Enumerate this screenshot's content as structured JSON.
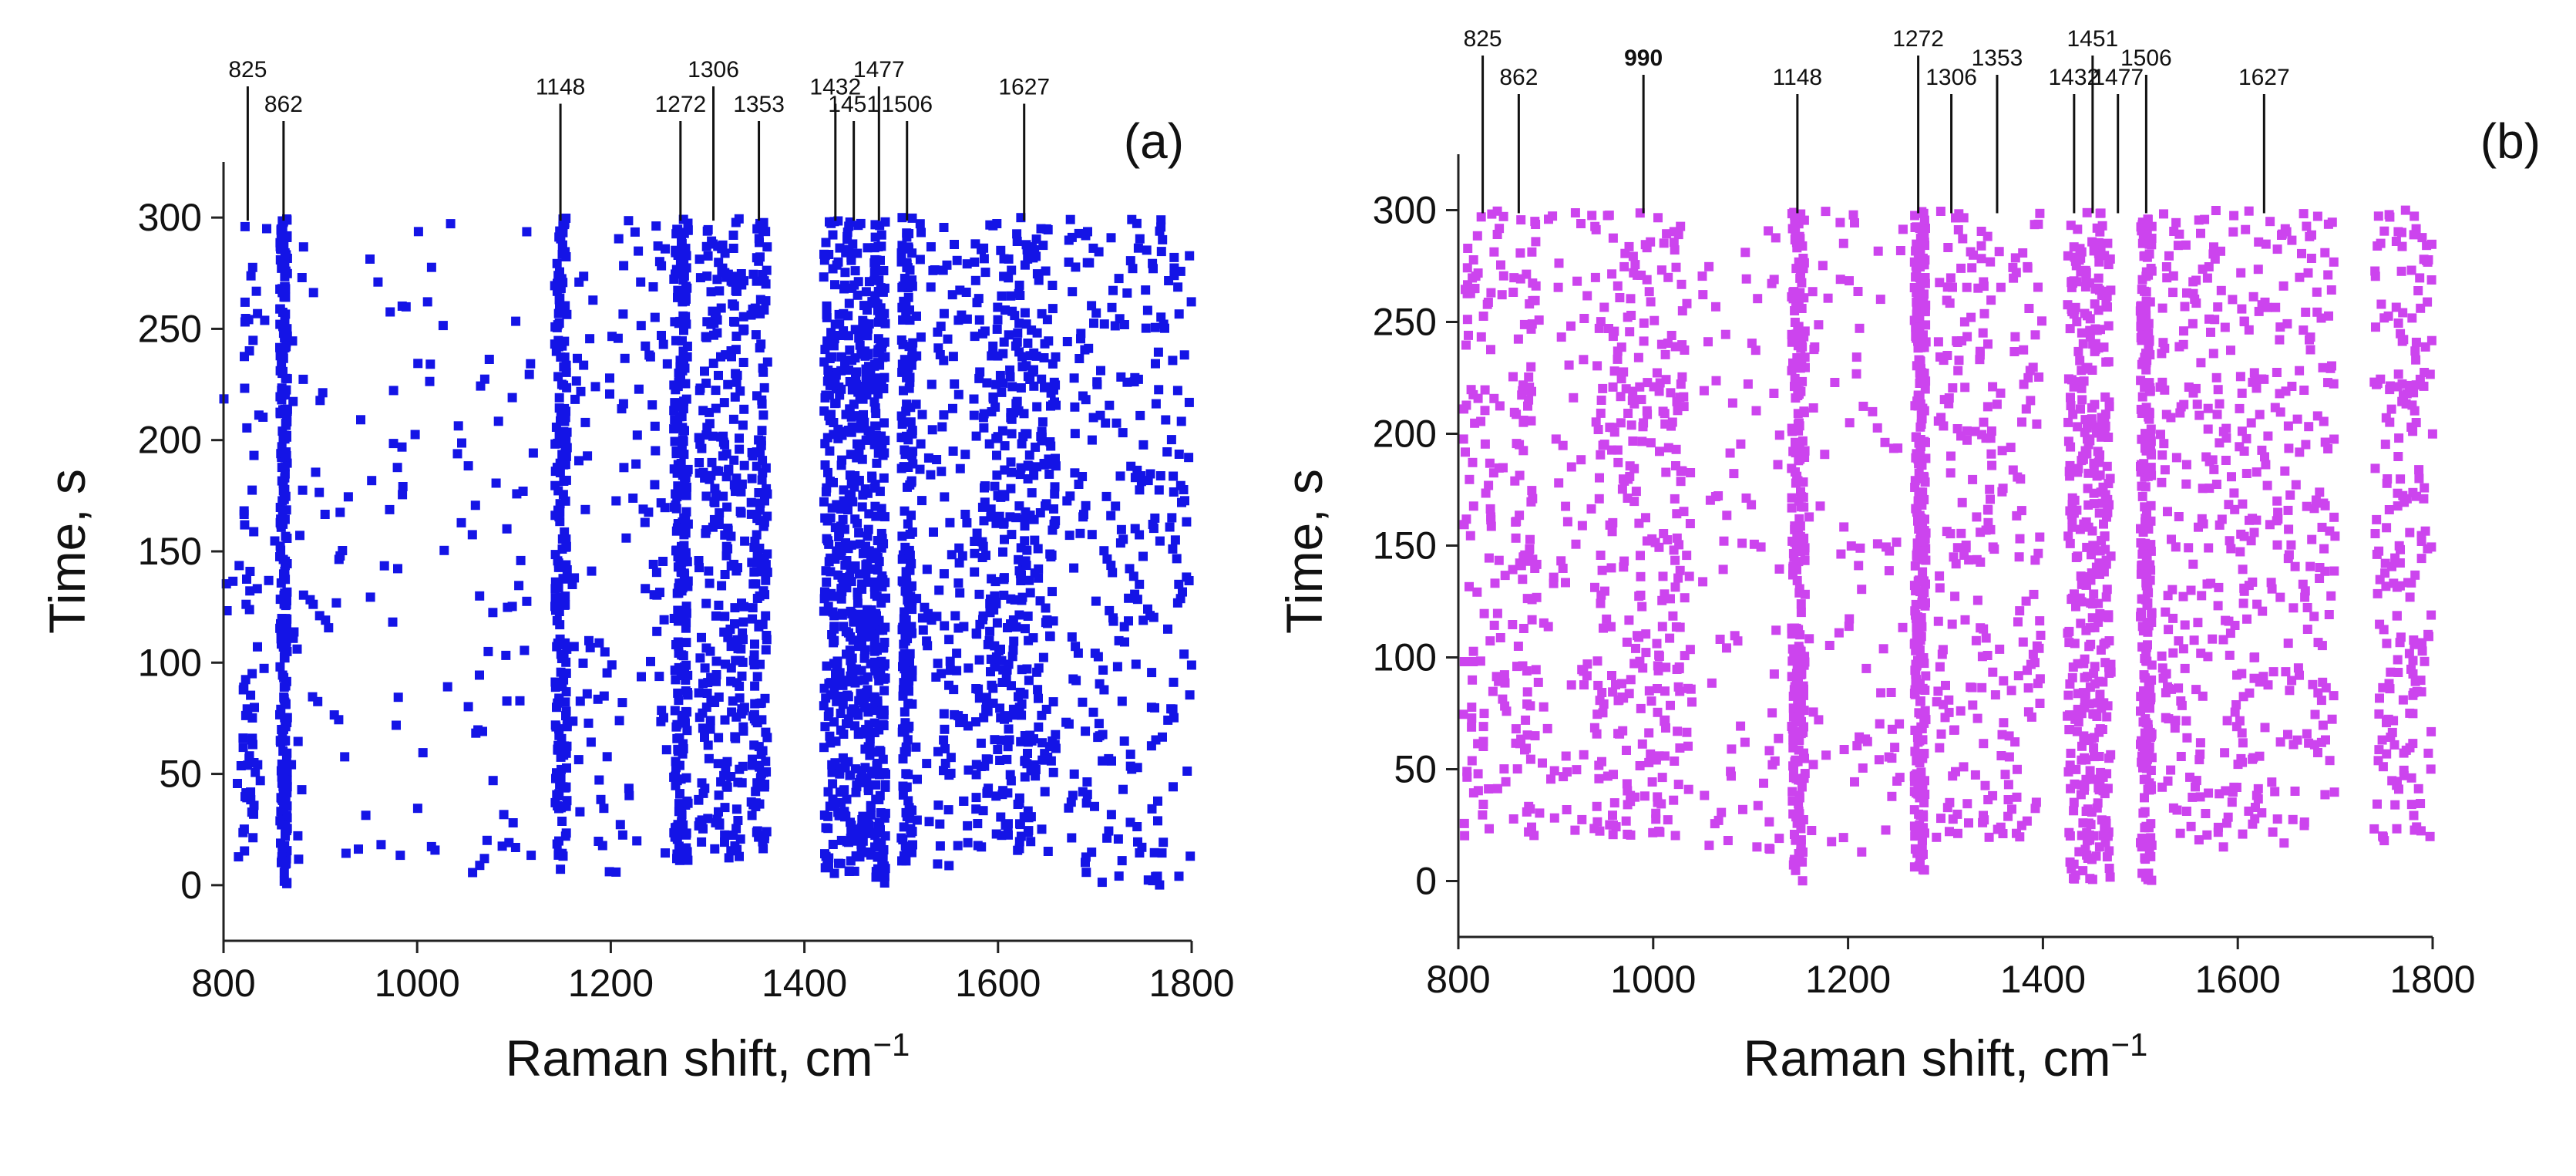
{
  "chart_data": [
    {
      "type": "scatter",
      "panel_label": "(a)",
      "xlabel": "Raman shift, cm",
      "xlabel_exponent": "−1",
      "ylabel": "Time, s",
      "xlim": [
        800,
        1800
      ],
      "ylim": [
        -25,
        325
      ],
      "xticks": [
        800,
        1000,
        1200,
        1400,
        1600,
        1800
      ],
      "yticks": [
        0,
        50,
        100,
        150,
        200,
        250,
        300
      ],
      "marker_color": "#1414e6",
      "peaks": [
        {
          "label": "825",
          "x": 825
        },
        {
          "label": "862",
          "x": 862
        },
        {
          "label": "1148",
          "x": 1148
        },
        {
          "label": "1272",
          "x": 1272
        },
        {
          "label": "1306",
          "x": 1306
        },
        {
          "label": "1353",
          "x": 1353
        },
        {
          "label": "1432",
          "x": 1432
        },
        {
          "label": "1451",
          "x": 1451
        },
        {
          "label": "1477",
          "x": 1477
        },
        {
          "label": "1506",
          "x": 1506
        },
        {
          "label": "1627",
          "x": 1627
        }
      ],
      "point_groups": [
        {
          "x_min": 820,
          "x_max": 832,
          "y_min": 20,
          "y_max": 300,
          "count": 45
        },
        {
          "x_min": 858,
          "x_max": 866,
          "y_min": 0,
          "y_max": 300,
          "count": 260
        },
        {
          "x_min": 1142,
          "x_max": 1155,
          "y_min": 5,
          "y_max": 300,
          "count": 200
        },
        {
          "x_min": 1265,
          "x_max": 1280,
          "y_min": 10,
          "y_max": 300,
          "count": 250
        },
        {
          "x_min": 1290,
          "x_max": 1340,
          "y_min": 10,
          "y_max": 300,
          "count": 260
        },
        {
          "x_min": 1345,
          "x_max": 1362,
          "y_min": 10,
          "y_max": 300,
          "count": 150
        },
        {
          "x_min": 1420,
          "x_max": 1470,
          "y_min": 5,
          "y_max": 300,
          "count": 480
        },
        {
          "x_min": 1472,
          "x_max": 1484,
          "y_min": 0,
          "y_max": 300,
          "count": 200
        },
        {
          "x_min": 1500,
          "x_max": 1512,
          "y_min": 10,
          "y_max": 300,
          "count": 200
        },
        {
          "x_min": 1575,
          "x_max": 1660,
          "y_min": 15,
          "y_max": 300,
          "count": 420
        },
        {
          "x_min": 1670,
          "x_max": 1800,
          "y_min": 0,
          "y_max": 300,
          "count": 260
        },
        {
          "x_min": 800,
          "x_max": 1120,
          "y_min": 5,
          "y_max": 300,
          "count": 160
        },
        {
          "x_min": 1160,
          "x_max": 1260,
          "y_min": 5,
          "y_max": 300,
          "count": 110
        },
        {
          "x_min": 1515,
          "x_max": 1570,
          "y_min": 5,
          "y_max": 300,
          "count": 120
        }
      ]
    },
    {
      "type": "scatter",
      "panel_label": "(b)",
      "xlabel": "Raman shift, cm",
      "xlabel_exponent": "−1",
      "ylabel": "Time, s",
      "xlim": [
        800,
        1800
      ],
      "ylim": [
        -25,
        325
      ],
      "xticks": [
        800,
        1000,
        1200,
        1400,
        1600,
        1800
      ],
      "yticks": [
        0,
        50,
        100,
        150,
        200,
        250,
        300
      ],
      "marker_color": "#cc44ee",
      "highlight_color": "#cc33ee",
      "peaks": [
        {
          "label": "825",
          "x": 825
        },
        {
          "label": "862",
          "x": 862
        },
        {
          "label": "990",
          "x": 990,
          "highlight": true
        },
        {
          "label": "1148",
          "x": 1148
        },
        {
          "label": "1272",
          "x": 1272
        },
        {
          "label": "1306",
          "x": 1306
        },
        {
          "label": "1353",
          "x": 1353
        },
        {
          "label": "1432",
          "x": 1432
        },
        {
          "label": "1451",
          "x": 1451
        },
        {
          "label": "1477",
          "x": 1477
        },
        {
          "label": "1506",
          "x": 1506
        },
        {
          "label": "1627",
          "x": 1627
        }
      ],
      "point_groups": [
        {
          "x_min": 805,
          "x_max": 850,
          "y_min": 20,
          "y_max": 300,
          "count": 110
        },
        {
          "x_min": 855,
          "x_max": 880,
          "y_min": 20,
          "y_max": 300,
          "count": 90
        },
        {
          "x_min": 940,
          "x_max": 1040,
          "y_min": 20,
          "y_max": 300,
          "count": 300
        },
        {
          "x_min": 1142,
          "x_max": 1156,
          "y_min": 0,
          "y_max": 300,
          "count": 240
        },
        {
          "x_min": 1268,
          "x_max": 1280,
          "y_min": 0,
          "y_max": 300,
          "count": 300
        },
        {
          "x_min": 1290,
          "x_max": 1400,
          "y_min": 15,
          "y_max": 300,
          "count": 240
        },
        {
          "x_min": 1425,
          "x_max": 1470,
          "y_min": 0,
          "y_max": 300,
          "count": 380
        },
        {
          "x_min": 1500,
          "x_max": 1512,
          "y_min": 0,
          "y_max": 300,
          "count": 240
        },
        {
          "x_min": 1520,
          "x_max": 1700,
          "y_min": 15,
          "y_max": 300,
          "count": 420
        },
        {
          "x_min": 1740,
          "x_max": 1800,
          "y_min": 15,
          "y_max": 300,
          "count": 200
        },
        {
          "x_min": 1050,
          "x_max": 1130,
          "y_min": 10,
          "y_max": 300,
          "count": 70
        },
        {
          "x_min": 1160,
          "x_max": 1260,
          "y_min": 10,
          "y_max": 300,
          "count": 80
        },
        {
          "x_min": 880,
          "x_max": 940,
          "y_min": 20,
          "y_max": 300,
          "count": 60
        }
      ]
    }
  ]
}
